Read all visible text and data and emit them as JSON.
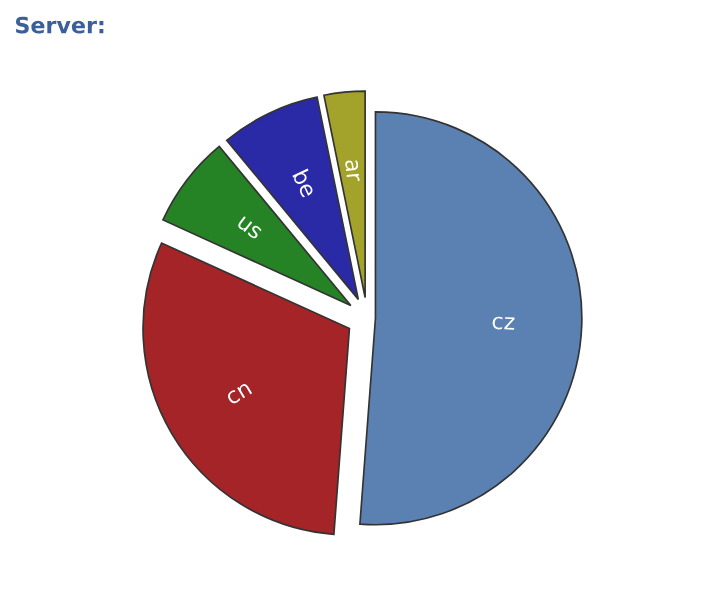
{
  "chart_data": {
    "type": "pie",
    "title": "Server:",
    "categories": [
      "cz",
      "cn",
      "us",
      "be",
      "ar"
    ],
    "values": [
      51.2,
      30.6,
      7.2,
      7.8,
      3.2
    ],
    "colors": [
      "#5b80b2",
      "#a52428",
      "#258225",
      "#2a2aa6",
      "#a3a22a"
    ],
    "legend": false
  }
}
